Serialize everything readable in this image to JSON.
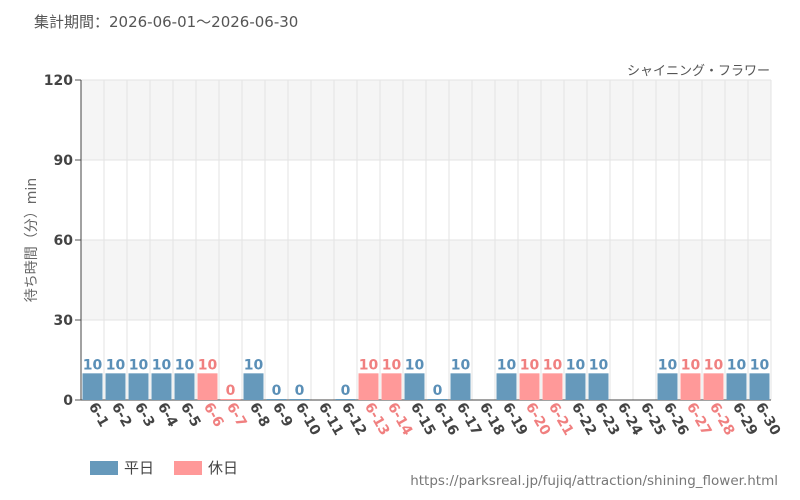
{
  "header": {
    "period_text": "集計期間：2026-06-01～2026-06-30"
  },
  "colors": {
    "weekday": "#6699bb",
    "holiday": "#ff9999",
    "weekday_text": "#5a8fb7",
    "holiday_text": "#f08080",
    "band": "#f5f5f5",
    "grid": "#e3e3e3"
  },
  "chart_data": {
    "type": "bar",
    "title": "シャイニング・フラワー",
    "ylabel": "待ち時間（分）min",
    "ylim": [
      0,
      120
    ],
    "yticks": [
      "0",
      "30",
      "60",
      "90",
      "120"
    ],
    "categories": [
      "6-1",
      "6-2",
      "6-3",
      "6-4",
      "6-5",
      "6-6",
      "6-7",
      "6-8",
      "6-9",
      "6-10",
      "6-11",
      "6-12",
      "6-13",
      "6-14",
      "6-15",
      "6-16",
      "6-17",
      "6-18",
      "6-19",
      "6-20",
      "6-21",
      "6-22",
      "6-23",
      "6-24",
      "6-25",
      "6-26",
      "6-27",
      "6-28",
      "6-29",
      "6-30"
    ],
    "values": [
      10,
      10,
      10,
      10,
      10,
      10,
      0,
      10,
      0,
      0,
      null,
      0,
      10,
      10,
      10,
      0,
      10,
      null,
      10,
      10,
      10,
      10,
      10,
      null,
      null,
      10,
      10,
      10,
      10,
      10
    ],
    "holiday": [
      false,
      false,
      false,
      false,
      false,
      true,
      true,
      false,
      false,
      false,
      false,
      false,
      true,
      true,
      false,
      false,
      false,
      false,
      false,
      true,
      true,
      false,
      false,
      false,
      false,
      false,
      true,
      true,
      false,
      false
    ],
    "legend": {
      "weekday_label": "平日",
      "holiday_label": "休日",
      "position": "bottom-left"
    }
  },
  "footer": {
    "url": "https://parksreal.jp/fujiq/attraction/shining_flower.html"
  }
}
